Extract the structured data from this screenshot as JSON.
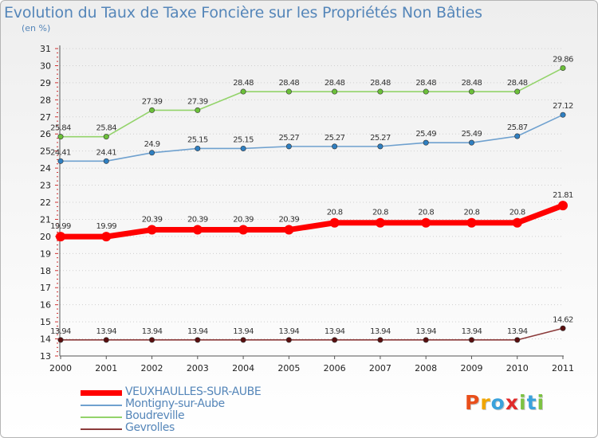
{
  "title": "Evolution du Taux de Taxe Foncière sur les Propriétés Non Bâties",
  "unit_label": "(en %)",
  "logo": {
    "text": "Proxiti",
    "letter_colors": [
      "#e94f1b",
      "#f0a500",
      "#3aa2dc",
      "#e02a2a",
      "#7cc242",
      "#3aa2dc",
      "#7cc242"
    ]
  },
  "chart_data": {
    "type": "line",
    "title": "Evolution du Taux de Taxe Foncière sur les Propriétés Non Bâties",
    "ylabel": "(en %)",
    "xlabel": "",
    "categories": [
      "2000",
      "2001",
      "2002",
      "2003",
      "2004",
      "2005",
      "2006",
      "2007",
      "2008",
      "2009",
      "2010",
      "2011"
    ],
    "ylim": [
      13,
      31
    ],
    "yticks": [
      "13",
      "14",
      "15",
      "16",
      "17",
      "18",
      "19",
      "20",
      "21",
      "22",
      "23",
      "24",
      "25",
      "26",
      "27",
      "28",
      "29",
      "30",
      "31"
    ],
    "grid": "horizontal dotted",
    "legend_position": "bottom-left",
    "series": [
      {
        "name": "VEUXHAULLES-SUR-AUBE",
        "color": "#ff0000",
        "marker": "#ff0000",
        "emphasis": "thick",
        "values": [
          19.99,
          19.99,
          20.39,
          20.39,
          20.39,
          20.39,
          20.8,
          20.8,
          20.8,
          20.8,
          20.8,
          21.81
        ],
        "labels": [
          "19.99",
          "19.99",
          "20.39",
          "20.39",
          "20.39",
          "20.39",
          "20.8",
          "20.8",
          "20.8",
          "20.8",
          "20.8",
          "21.81"
        ]
      },
      {
        "name": "Montigny-sur-Aube",
        "color": "#6fa1cf",
        "marker": "#2f7fc1",
        "emphasis": "normal",
        "values": [
          24.41,
          24.41,
          24.9,
          25.15,
          25.15,
          25.27,
          25.27,
          25.27,
          25.49,
          25.49,
          25.87,
          27.12
        ],
        "labels": [
          "24.41",
          "24.41",
          "24.9",
          "25.15",
          "25.15",
          "25.27",
          "25.27",
          "25.27",
          "25.49",
          "25.49",
          "25.87",
          "27.12"
        ]
      },
      {
        "name": "Boudreville",
        "color": "#93d36a",
        "marker": "#6cc03a",
        "emphasis": "normal",
        "values": [
          25.84,
          25.84,
          27.39,
          27.39,
          28.48,
          28.48,
          28.48,
          28.48,
          28.48,
          28.48,
          28.48,
          29.86
        ],
        "labels": [
          "25.84",
          "25.84",
          "27.39",
          "27.39",
          "28.48",
          "28.48",
          "28.48",
          "28.48",
          "28.48",
          "28.48",
          "28.48",
          "29.86"
        ]
      },
      {
        "name": "Gevrolles",
        "color": "#8b3a3a",
        "marker": "#5a0f0f",
        "emphasis": "normal",
        "values": [
          13.94,
          13.94,
          13.94,
          13.94,
          13.94,
          13.94,
          13.94,
          13.94,
          13.94,
          13.94,
          13.94,
          14.62
        ],
        "labels": [
          "13.94",
          "13.94",
          "13.94",
          "13.94",
          "13.94",
          "13.94",
          "13.94",
          "13.94",
          "13.94",
          "13.94",
          "13.94",
          "14.62"
        ]
      }
    ],
    "legend_order": [
      0,
      1,
      2,
      3
    ]
  }
}
